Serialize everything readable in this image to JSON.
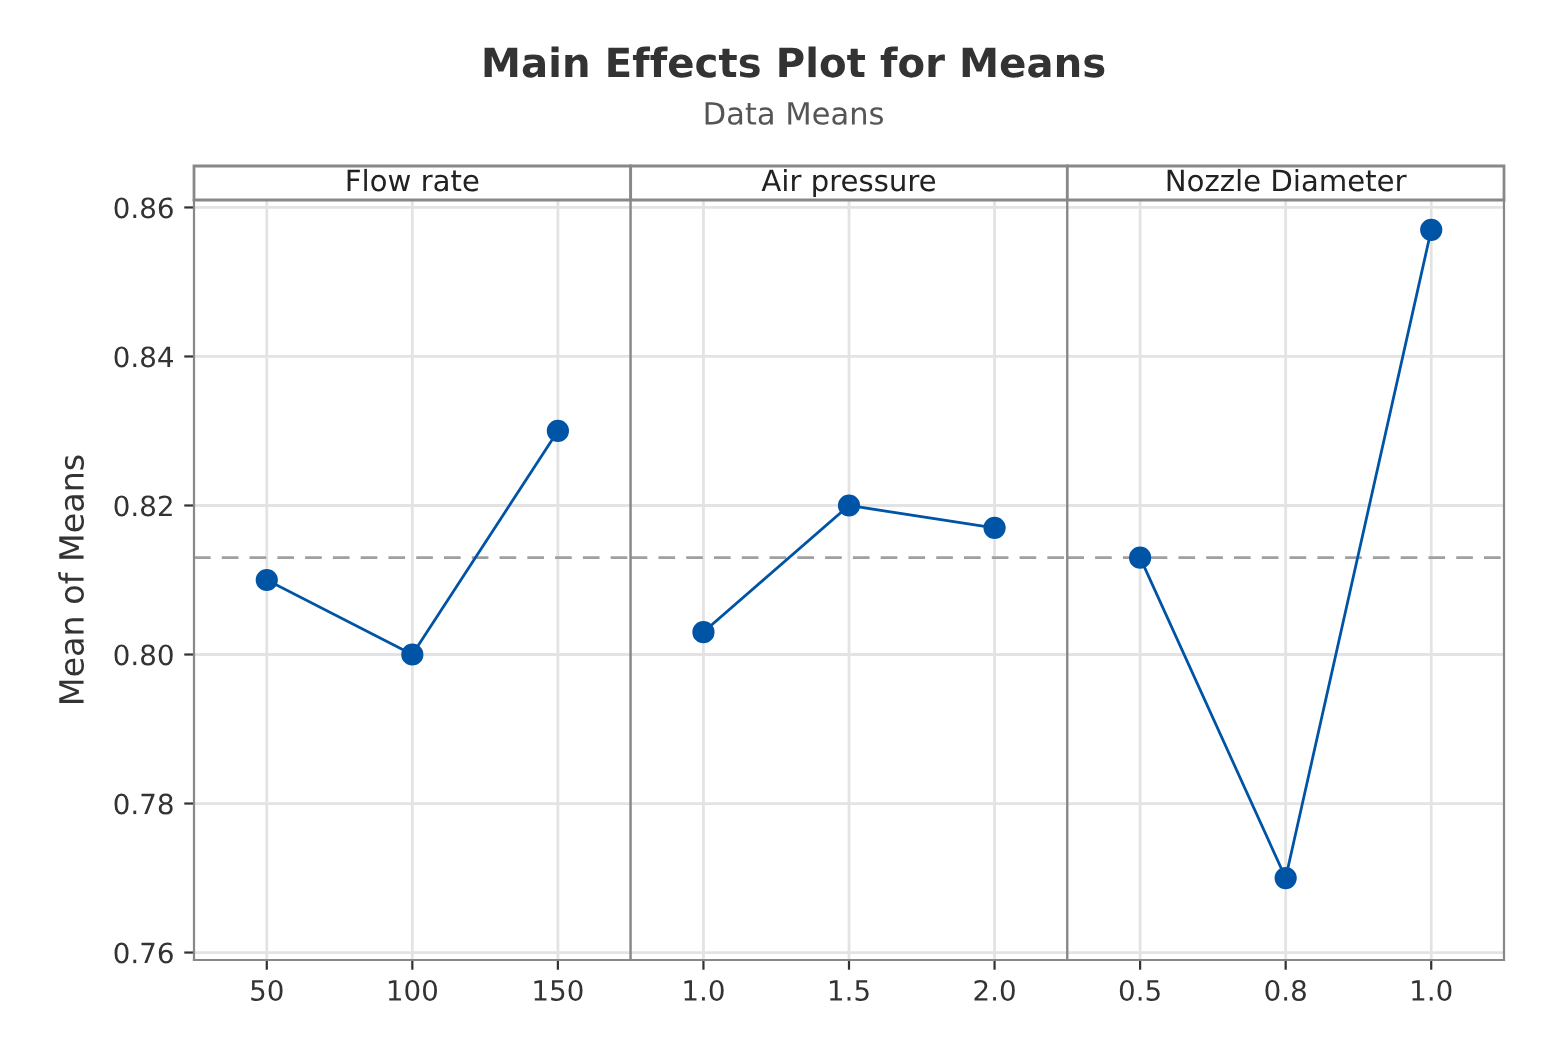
{
  "chart_data": [
    {
      "type": "line",
      "title": "Flow rate",
      "ylabel": "Mean of Means",
      "annotations": [
        "Main Effects Plot for Means",
        "Data Means"
      ],
      "categories": [
        "50",
        "100",
        "150"
      ],
      "values": [
        0.81,
        0.8,
        0.83
      ],
      "color": "#0054a6",
      "marker": "circle",
      "grid": true,
      "ylim": [
        0.759,
        0.861
      ],
      "yticks": [
        {
          "value": 0.76,
          "label": "0.76"
        },
        {
          "value": 0.78,
          "label": "0.78"
        },
        {
          "value": 0.8,
          "label": "0.80"
        },
        {
          "value": 0.82,
          "label": "0.82"
        },
        {
          "value": 0.84,
          "label": "0.84"
        },
        {
          "value": 0.86,
          "label": "0.86"
        }
      ],
      "ref_lines": [
        {
          "axis": "y",
          "value": 0.813,
          "color": "#a0a0a0",
          "line_style": "dashed"
        }
      ]
    },
    {
      "type": "line",
      "title": "Air pressure",
      "categories": [
        "1.0",
        "1.5",
        "2.0"
      ],
      "values": [
        0.803,
        0.82,
        0.817
      ],
      "color": "#0054a6",
      "marker": "circle",
      "grid": true,
      "ylim": [
        0.759,
        0.861
      ],
      "tick_labels": "x",
      "yticks": [
        {
          "value": 0.76,
          "label": null
        },
        {
          "value": 0.78,
          "label": null
        },
        {
          "value": 0.8,
          "label": null
        },
        {
          "value": 0.82,
          "label": null
        },
        {
          "value": 0.84,
          "label": null
        },
        {
          "value": 0.86,
          "label": null
        }
      ],
      "ref_lines": [
        {
          "axis": "y",
          "value": 0.813,
          "color": "#a0a0a0",
          "line_style": "dashed"
        }
      ]
    },
    {
      "type": "line",
      "title": "Nozzle Diameter",
      "categories": [
        "0.5",
        "0.8",
        "1.0"
      ],
      "values": [
        0.813,
        0.77,
        0.857
      ],
      "color": "#0054a6",
      "marker": "circle",
      "grid": true,
      "ylim": [
        0.759,
        0.861
      ],
      "tick_labels": "x",
      "yticks": [
        {
          "value": 0.76,
          "label": null
        },
        {
          "value": 0.78,
          "label": null
        },
        {
          "value": 0.8,
          "label": null
        },
        {
          "value": 0.82,
          "label": null
        },
        {
          "value": 0.84,
          "label": null
        },
        {
          "value": 0.86,
          "label": null
        }
      ],
      "ref_lines": [
        {
          "axis": "y",
          "value": 0.813,
          "color": "#a0a0a0",
          "line_style": "dashed"
        }
      ]
    }
  ]
}
